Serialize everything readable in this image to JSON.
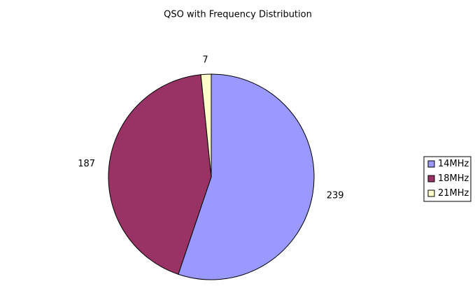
{
  "chart_data": {
    "type": "pie",
    "title": "QSO with Frequency Distribution",
    "categories": [
      "14MHz",
      "18MHz",
      "21MHz"
    ],
    "values": [
      239,
      187,
      7
    ],
    "colors": [
      "#9999ff",
      "#993366",
      "#ffffcc"
    ],
    "legend": "right"
  }
}
